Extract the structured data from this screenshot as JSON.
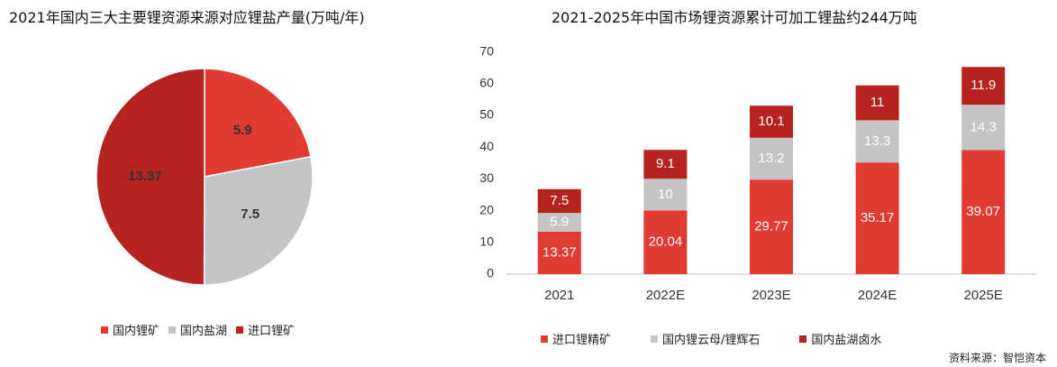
{
  "left_title": "2021年国内三大主要锂资源来源对应锂盐产量(万吨/年)",
  "right_title": "2021-2025年中国市场锂资源累计可加工锂盐约244万吨",
  "source": "资料来源：智恺资本",
  "chart_data": [
    {
      "type": "pie",
      "title": "2021年国内三大主要锂资源来源对应锂盐产量(万吨/年)",
      "slices": [
        {
          "name": "国内锂矿",
          "value": 5.9,
          "color": "#e03a32"
        },
        {
          "name": "国内盐湖",
          "value": 7.5,
          "color": "#c4c4c4"
        },
        {
          "name": "进口锂矿",
          "value": 13.37,
          "color": "#b5231e"
        }
      ],
      "legend": "bottom"
    },
    {
      "type": "bar",
      "stacked": true,
      "title": "2021-2025年中国市场锂资源累计可加工锂盐约244万吨",
      "categories": [
        "2021",
        "2022E",
        "2023E",
        "2024E",
        "2025E"
      ],
      "series": [
        {
          "name": "进口锂精矿",
          "values": [
            13.37,
            20.04,
            29.77,
            35.17,
            39.07
          ],
          "color": "#e03a32"
        },
        {
          "name": "国内锂云母/锂辉石",
          "values": [
            5.9,
            10,
            13.2,
            13.3,
            14.3
          ],
          "color": "#c4c4c4"
        },
        {
          "name": "国内盐湖卤水",
          "values": [
            7.5,
            9.1,
            10.1,
            11,
            11.9
          ],
          "color": "#b5231e"
        }
      ],
      "yticks": [
        0,
        10,
        20,
        30,
        40,
        50,
        60,
        70
      ],
      "ylim": [
        0,
        70
      ],
      "grid": false,
      "legend": "bottom"
    }
  ]
}
